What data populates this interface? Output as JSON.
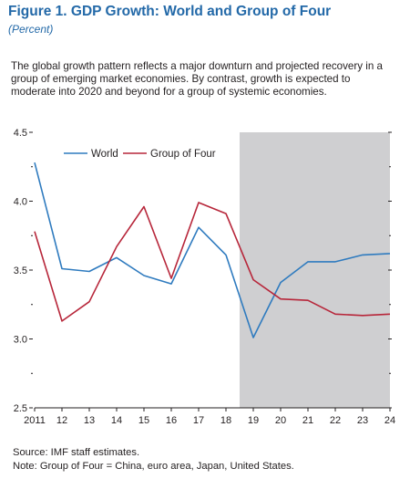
{
  "header": {
    "title": "Figure 1. GDP Growth: World and Group of Four",
    "subtitle": "(Percent)"
  },
  "description": [
    "The global growth pattern reflects a major downturn and projected recovery in a",
    "group of emerging market economies. By contrast, growth is expected to",
    "moderate into 2020 and beyond for a group of systemic economies."
  ],
  "footer": {
    "source": "Source: IMF staff estimates.",
    "note": "Note: Group of Four = China, euro area, Japan, United States."
  },
  "colors": {
    "world": "#2f7bbf",
    "group_of_four": "#b7263a",
    "projection_shade": "#cfcfd1",
    "title": "#2369a8"
  },
  "chart_data": {
    "type": "line",
    "x": [
      "2011",
      "12",
      "13",
      "14",
      "15",
      "16",
      "17",
      "18",
      "19",
      "20",
      "21",
      "22",
      "23",
      "24"
    ],
    "series": [
      {
        "name": "World",
        "values": [
          4.28,
          3.51,
          3.49,
          3.59,
          3.46,
          3.4,
          3.81,
          3.61,
          3.01,
          3.41,
          3.56,
          3.56,
          3.61,
          3.62
        ]
      },
      {
        "name": "Group of Four",
        "values": [
          3.78,
          3.13,
          3.27,
          3.67,
          3.96,
          3.44,
          3.99,
          3.91,
          3.43,
          3.29,
          3.28,
          3.18,
          3.17,
          3.18
        ]
      }
    ],
    "y_ticks": [
      "2.5",
      "3.0",
      "3.5",
      "4.0",
      "4.5"
    ],
    "ylim": [
      2.5,
      4.5
    ],
    "shaded_region": {
      "from": "19",
      "to": "24"
    },
    "legend_position": "top-left",
    "grid": false
  }
}
